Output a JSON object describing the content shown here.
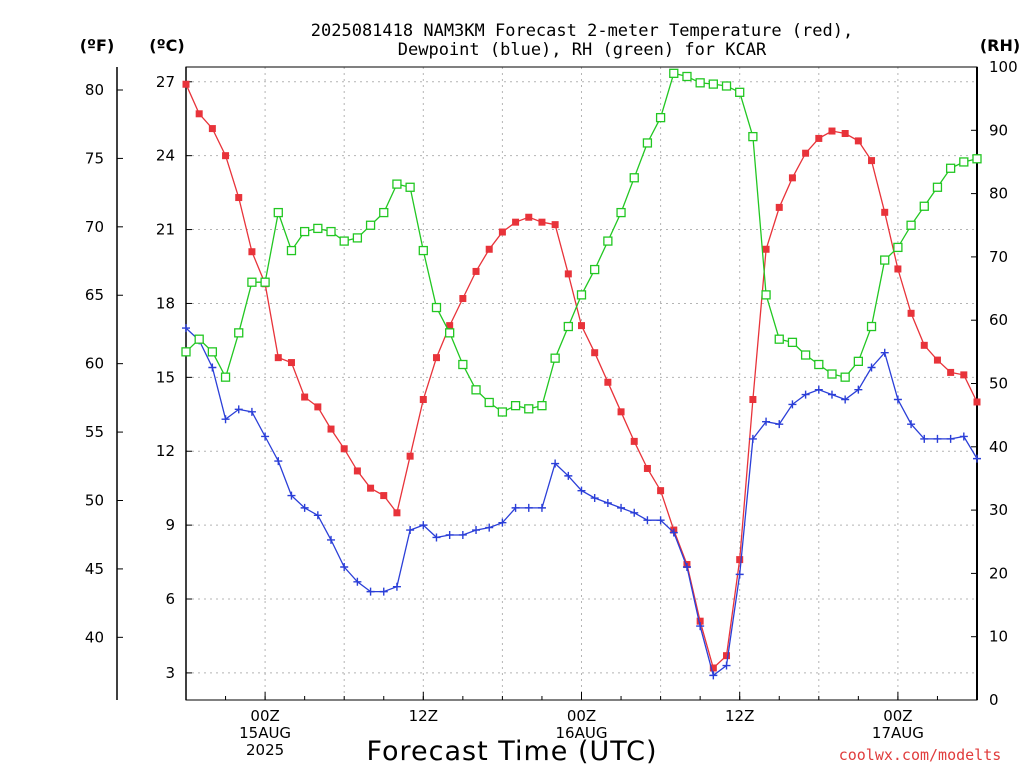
{
  "title": {
    "line1": "2025081418 NAM3KM Forecast 2-meter Temperature (red),",
    "line2": "Dewpoint (blue), RH (green) for KCAR"
  },
  "units": {
    "fahrenheit": "(ºF)",
    "celsius": "(ºC)",
    "rh": "(RH)"
  },
  "xlabel": "Forecast Time (UTC)",
  "credit": "coolwx.com/modelts",
  "chart_data": {
    "type": "line",
    "title": "2025081418 NAM3KM Forecast 2-meter Temperature (red), Dewpoint (blue), RH (green) for KCAR",
    "xlabel": "Forecast Time (UTC)",
    "x_start": "2025-08-14 18Z",
    "x_step_hours": 1,
    "xlim_hours": [
      0,
      60
    ],
    "x_ticks": [
      {
        "hour": 6,
        "lines": [
          "00Z",
          "15AUG",
          "2025"
        ]
      },
      {
        "hour": 18,
        "lines": [
          "12Z"
        ]
      },
      {
        "hour": 30,
        "lines": [
          "00Z",
          "16AUG"
        ]
      },
      {
        "hour": 42,
        "lines": [
          "12Z"
        ]
      },
      {
        "hour": 54,
        "lines": [
          "00Z",
          "17AUG"
        ]
      }
    ],
    "y_left_celsius": {
      "label": "(ºC)",
      "ticks": [
        3,
        6,
        9,
        12,
        15,
        18,
        21,
        24,
        27
      ],
      "ylim": [
        1.9,
        27.6
      ]
    },
    "y_left_fahrenheit": {
      "label": "(ºF)",
      "ticks": [
        40,
        45,
        50,
        55,
        60,
        65,
        70,
        75,
        80
      ]
    },
    "y_right_rh": {
      "label": "(RH)",
      "ticks": [
        0,
        10,
        20,
        30,
        40,
        50,
        60,
        70,
        80,
        90,
        100
      ],
      "ylim": [
        0,
        100
      ]
    },
    "grid": true,
    "series": [
      {
        "name": "Temperature",
        "color": "#e8333a",
        "marker": "filled-square",
        "axis": "celsius",
        "values": [
          26.9,
          25.7,
          25.1,
          24.0,
          22.3,
          20.1,
          18.8,
          15.8,
          15.6,
          14.2,
          13.8,
          12.9,
          12.1,
          11.2,
          10.5,
          10.2,
          9.5,
          11.8,
          14.1,
          15.8,
          17.1,
          18.2,
          19.3,
          20.2,
          20.9,
          21.3,
          21.5,
          21.3,
          21.2,
          19.2,
          17.1,
          16.0,
          14.8,
          13.6,
          12.4,
          11.3,
          10.4,
          8.8,
          7.4,
          5.1,
          3.2,
          3.7,
          7.6,
          14.1,
          20.2,
          21.9,
          23.1,
          24.1,
          24.7,
          25.0,
          24.9,
          24.6,
          23.8,
          21.7,
          19.4,
          17.6,
          16.3,
          15.7,
          15.2,
          15.1,
          14.0
        ]
      },
      {
        "name": "Dewpoint",
        "color": "#2b3fd8",
        "marker": "plus",
        "axis": "celsius",
        "values": [
          17.0,
          16.5,
          15.4,
          13.3,
          13.7,
          13.6,
          12.6,
          11.6,
          10.2,
          9.7,
          9.4,
          8.4,
          7.3,
          6.7,
          6.3,
          6.3,
          6.5,
          8.8,
          9.0,
          8.5,
          8.6,
          8.6,
          8.8,
          8.9,
          9.1,
          9.7,
          9.7,
          9.7,
          11.5,
          11.0,
          10.4,
          10.1,
          9.9,
          9.7,
          9.5,
          9.2,
          9.2,
          8.7,
          7.3,
          4.9,
          2.9,
          3.3,
          7.0,
          12.5,
          13.2,
          13.1,
          13.9,
          14.3,
          14.5,
          14.3,
          14.1,
          14.5,
          15.4,
          16.0,
          14.1,
          13.1,
          12.5,
          12.5,
          12.5,
          12.6,
          11.7
        ]
      },
      {
        "name": "RH",
        "color": "#22c722",
        "marker": "open-square",
        "axis": "rh",
        "values": [
          55,
          57,
          55,
          51,
          58,
          66,
          66,
          77,
          71,
          74,
          74.5,
          74,
          72.5,
          73,
          75,
          77,
          81.5,
          81,
          71,
          62,
          58,
          53,
          49,
          47,
          45.5,
          46.5,
          46,
          46.5,
          54,
          59,
          64,
          68,
          72.5,
          77,
          82.5,
          88,
          92,
          99,
          98.5,
          97.5,
          97.3,
          97,
          96,
          89,
          64,
          57,
          56.5,
          54.5,
          53,
          51.5,
          51,
          53.5,
          59,
          69.5,
          71.5,
          75,
          78,
          81,
          84,
          85,
          85.5
        ]
      }
    ]
  }
}
